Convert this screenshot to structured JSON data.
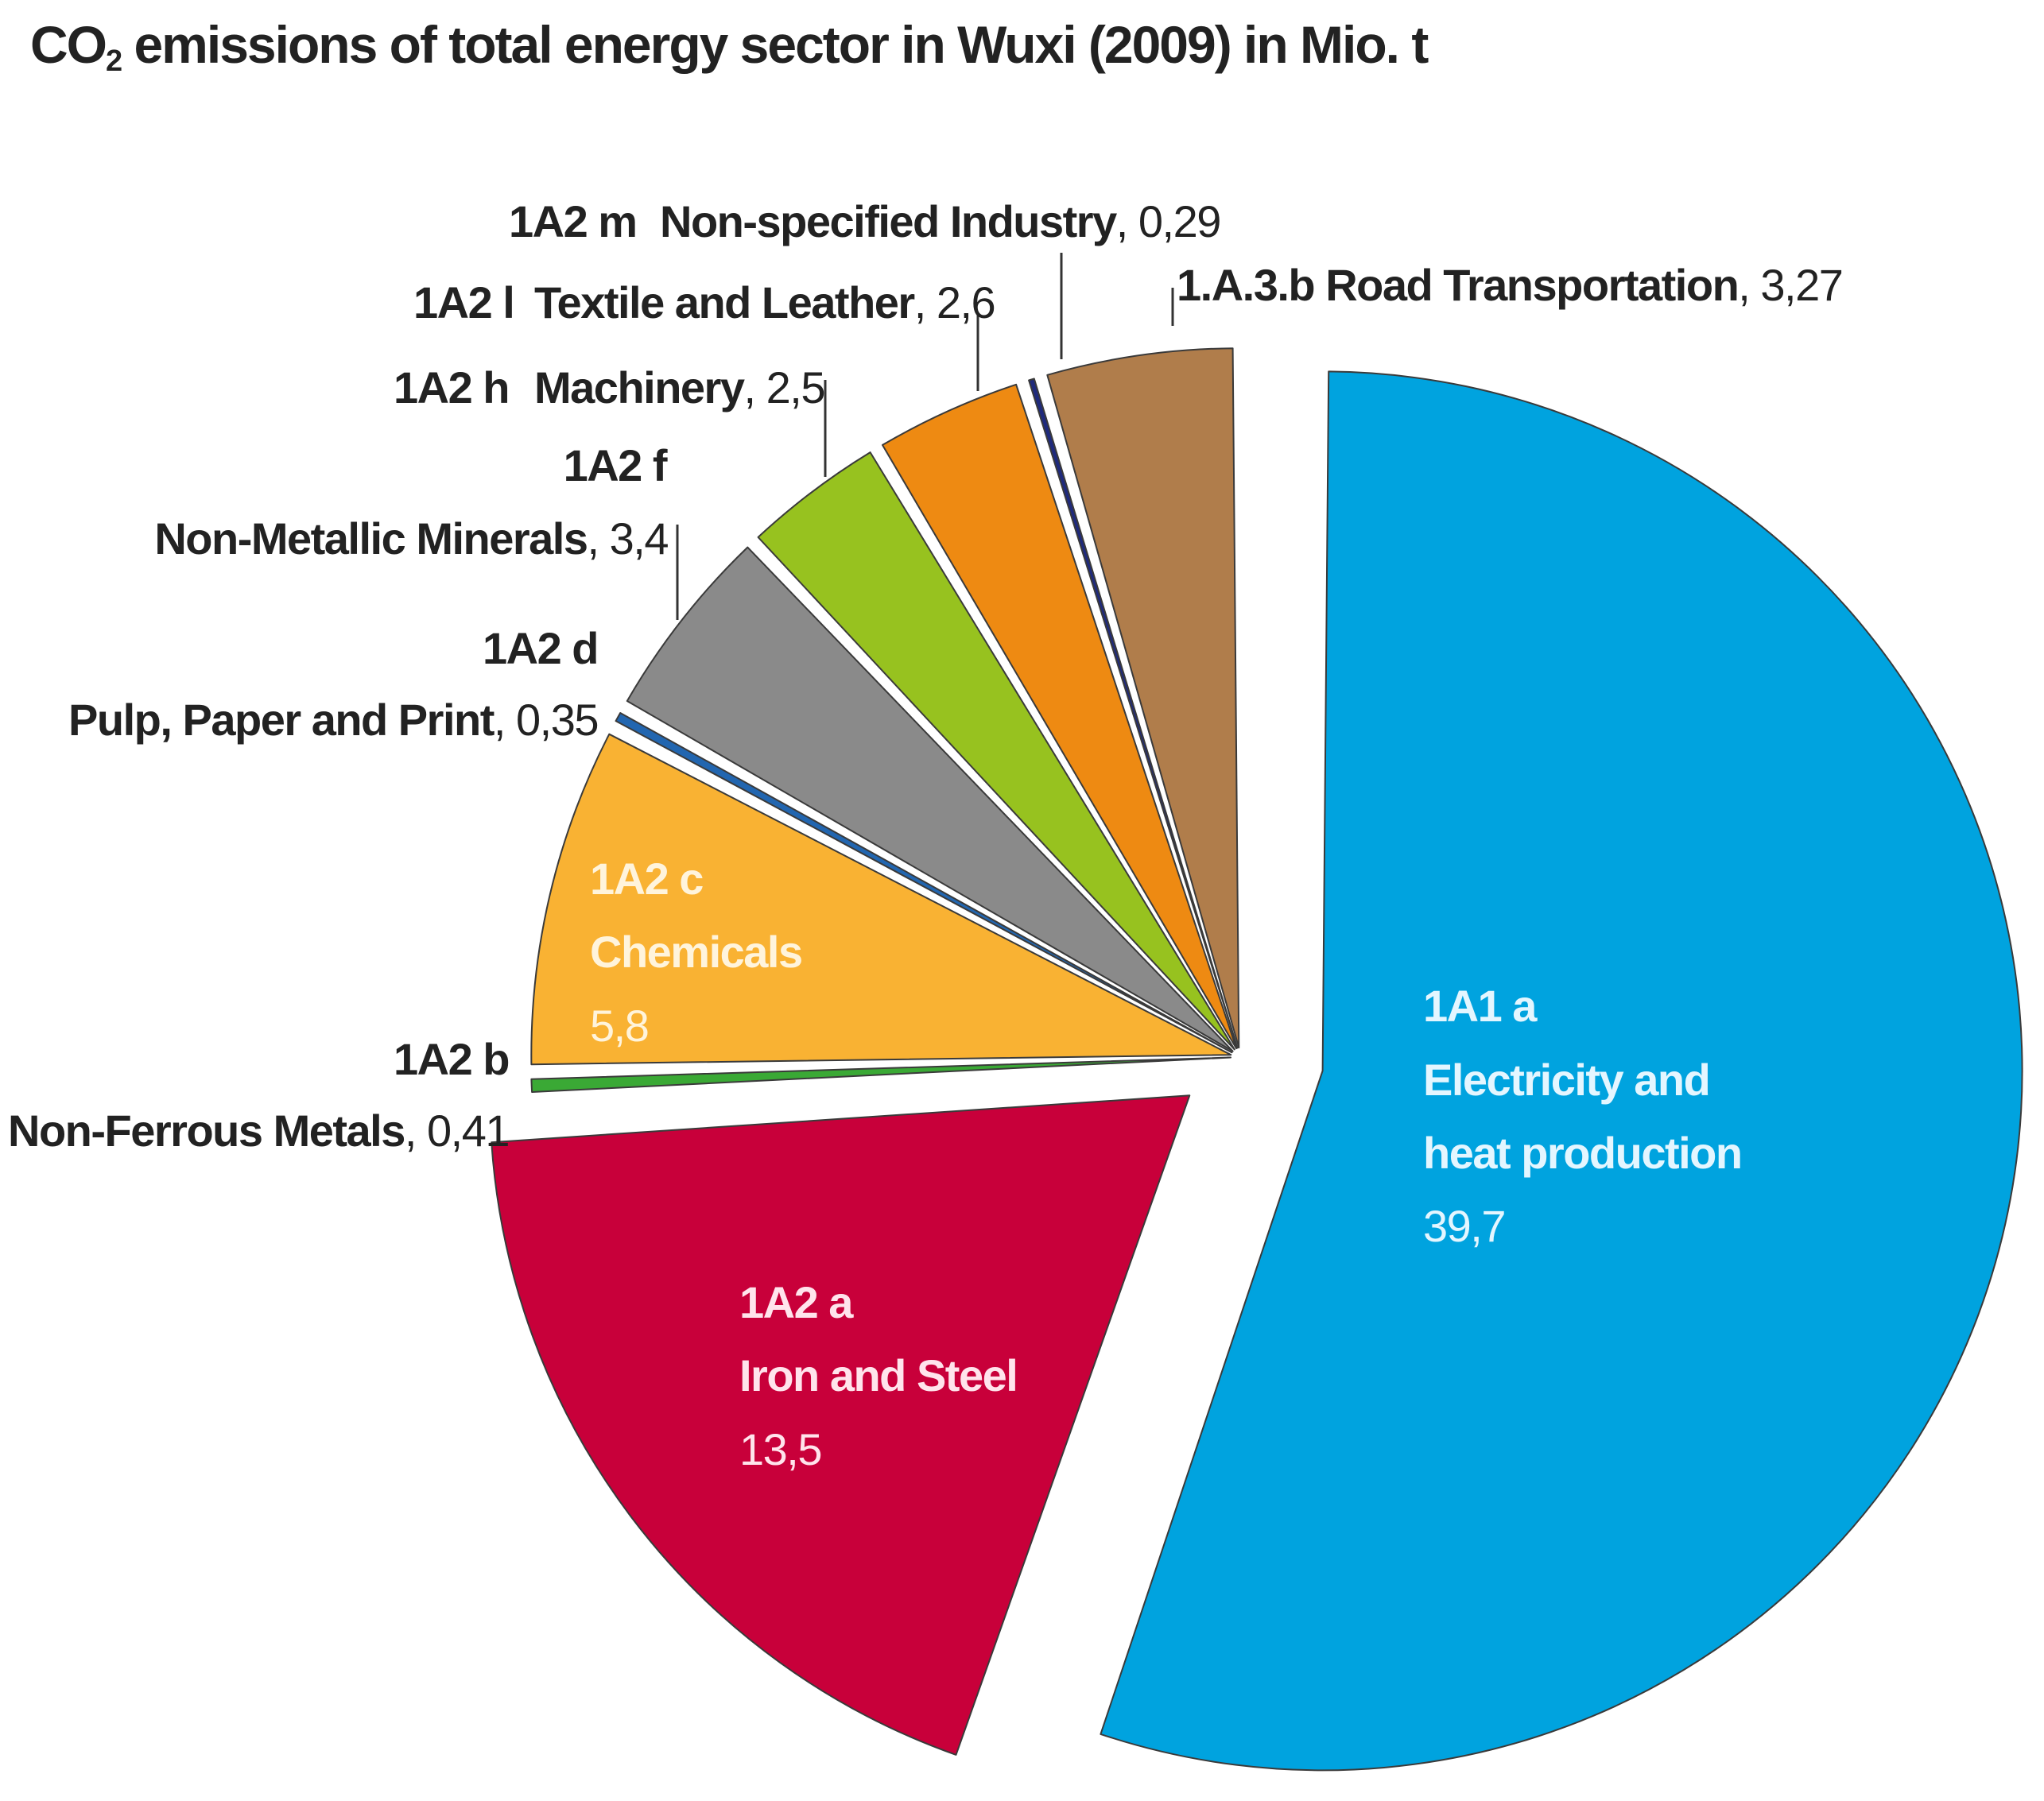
{
  "title_prefix": "CO",
  "title_sub": "2",
  "title_rest": " emissions of total energy sector in Wuxi (2009) in Mio. t",
  "chart_data": {
    "type": "pie",
    "title": "CO2 emissions of total energy sector in Wuxi (2009) in Mio. t",
    "unit": "Mio. t",
    "slices": [
      {
        "id": "electricity",
        "code": "1A1 a",
        "name": "Electricity and heat production",
        "value": 39.7,
        "value_label": "39,7",
        "color": "#00a3df",
        "exploded": true,
        "label_inside": true,
        "name_lines": [
          "Electricity and",
          "heat production"
        ]
      },
      {
        "id": "iron-steel",
        "code": "1A2 a",
        "name": "Iron and Steel",
        "value": 13.5,
        "value_label": "13,5",
        "color": "#c8003a",
        "exploded": true,
        "label_inside": true,
        "name_lines": [
          "Iron and Steel"
        ]
      },
      {
        "id": "non-ferrous",
        "code": "1A2 b",
        "name": "Non-Ferrous Metals",
        "value": 0.41,
        "value_label": "0,41",
        "color": "#3aa935",
        "label_inside": false
      },
      {
        "id": "chemicals",
        "code": "1A2 c",
        "name": "Chemicals",
        "value": 5.8,
        "value_label": "5,8",
        "color": "#f9b233",
        "label_inside": true,
        "name_lines": [
          "Chemicals"
        ]
      },
      {
        "id": "pulp-paper",
        "code": "1A2 d",
        "name": "Pulp, Paper and Print",
        "value": 0.35,
        "value_label": "0,35",
        "color": "#2266b0",
        "label_inside": false
      },
      {
        "id": "non-metallic",
        "code": "1A2 f",
        "name": "Non-Metallic Minerals",
        "value": 3.4,
        "value_label": "3,4",
        "color": "#8a8a8a",
        "label_inside": false
      },
      {
        "id": "machinery",
        "code": "1A2 h",
        "name": "Machinery",
        "value": 2.5,
        "value_label": "2,5",
        "color": "#97c21f",
        "label_inside": false
      },
      {
        "id": "textile",
        "code": "1A2 l",
        "name": "Textile and Leather",
        "value": 2.6,
        "value_label": "2,6",
        "color": "#ee8a12",
        "label_inside": false
      },
      {
        "id": "non-specified",
        "code": "1A2 m",
        "name": "Non-specified Industry",
        "value": 0.29,
        "value_label": "0,29",
        "color": "#1f2a7c",
        "label_inside": false
      },
      {
        "id": "road",
        "code": "1.A.3.b",
        "name": "Road Transportation",
        "value": 3.27,
        "value_label": "3,27",
        "color": "#b07d4b",
        "label_inside": false
      }
    ]
  }
}
